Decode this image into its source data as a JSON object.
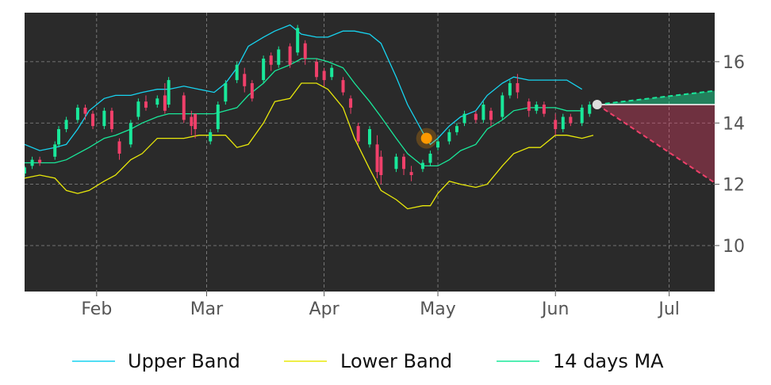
{
  "colors": {
    "background": "#ffffff",
    "plot_background": "#2a2a2a",
    "grid": "#8a8a8a",
    "upper_band": "#17d4f0",
    "lower_band": "#e8e80a",
    "ma": "#19e89a",
    "candle_up": "#19e89a",
    "candle_down": "#f0406a",
    "marker": "#ff9900",
    "projection_up": "#19e89a",
    "projection_down": "#f0406a",
    "projection_start": "#dddddd"
  },
  "chart_data": {
    "type": "line",
    "title": "",
    "xlabel": "",
    "ylabel": "",
    "x_range": [
      "2020-01-13",
      "2020-07-13"
    ],
    "ylim": [
      8.5,
      17.6
    ],
    "y_ticks": [
      10,
      12,
      14,
      16
    ],
    "y_tick_labels": [
      "10",
      "12",
      "14",
      "16"
    ],
    "x_ticks": [
      "2020-02-01",
      "2020-03-01",
      "2020-04-01",
      "2020-05-01",
      "2020-06-01",
      "2020-07-01"
    ],
    "x_tick_labels": [
      "Feb",
      "Mar",
      "Apr",
      "May",
      "Jun",
      "Jul"
    ],
    "grid": true,
    "legend_position": "bottom",
    "series": [
      {
        "name": "Upper Band",
        "key": "upper",
        "points": [
          [
            "2020-01-13",
            13.3
          ],
          [
            "2020-01-17",
            13.1
          ],
          [
            "2020-01-21",
            13.2
          ],
          [
            "2020-01-24",
            13.3
          ],
          [
            "2020-01-27",
            13.8
          ],
          [
            "2020-01-30",
            14.4
          ],
          [
            "2020-02-03",
            14.8
          ],
          [
            "2020-02-06",
            14.9
          ],
          [
            "2020-02-10",
            14.9
          ],
          [
            "2020-02-13",
            15.0
          ],
          [
            "2020-02-17",
            15.1
          ],
          [
            "2020-02-20",
            15.1
          ],
          [
            "2020-02-24",
            15.2
          ],
          [
            "2020-02-28",
            15.1
          ],
          [
            "2020-03-03",
            15.0
          ],
          [
            "2020-03-06",
            15.3
          ],
          [
            "2020-03-09",
            15.8
          ],
          [
            "2020-03-12",
            16.5
          ],
          [
            "2020-03-16",
            16.8
          ],
          [
            "2020-03-19",
            17.0
          ],
          [
            "2020-03-23",
            17.2
          ],
          [
            "2020-03-26",
            16.9
          ],
          [
            "2020-03-30",
            16.8
          ],
          [
            "2020-04-02",
            16.8
          ],
          [
            "2020-04-06",
            17.0
          ],
          [
            "2020-04-09",
            17.0
          ],
          [
            "2020-04-13",
            16.9
          ],
          [
            "2020-04-16",
            16.6
          ],
          [
            "2020-04-20",
            15.5
          ],
          [
            "2020-04-23",
            14.6
          ],
          [
            "2020-04-27",
            13.7
          ],
          [
            "2020-04-29",
            13.3
          ],
          [
            "2020-05-01",
            13.5
          ],
          [
            "2020-05-04",
            13.9
          ],
          [
            "2020-05-07",
            14.2
          ],
          [
            "2020-05-11",
            14.4
          ],
          [
            "2020-05-14",
            14.9
          ],
          [
            "2020-05-18",
            15.3
          ],
          [
            "2020-05-21",
            15.5
          ],
          [
            "2020-05-25",
            15.4
          ],
          [
            "2020-05-28",
            15.4
          ],
          [
            "2020-06-01",
            15.4
          ],
          [
            "2020-06-04",
            15.4
          ],
          [
            "2020-06-08",
            15.1
          ]
        ]
      },
      {
        "name": "Lower Band",
        "key": "lower",
        "points": [
          [
            "2020-01-13",
            12.2
          ],
          [
            "2020-01-17",
            12.3
          ],
          [
            "2020-01-21",
            12.2
          ],
          [
            "2020-01-24",
            11.8
          ],
          [
            "2020-01-27",
            11.7
          ],
          [
            "2020-01-30",
            11.8
          ],
          [
            "2020-02-03",
            12.1
          ],
          [
            "2020-02-06",
            12.3
          ],
          [
            "2020-02-10",
            12.8
          ],
          [
            "2020-02-13",
            13.0
          ],
          [
            "2020-02-17",
            13.5
          ],
          [
            "2020-02-20",
            13.5
          ],
          [
            "2020-02-24",
            13.5
          ],
          [
            "2020-02-28",
            13.6
          ],
          [
            "2020-03-03",
            13.6
          ],
          [
            "2020-03-06",
            13.6
          ],
          [
            "2020-03-09",
            13.2
          ],
          [
            "2020-03-12",
            13.3
          ],
          [
            "2020-03-16",
            14.0
          ],
          [
            "2020-03-19",
            14.7
          ],
          [
            "2020-03-23",
            14.8
          ],
          [
            "2020-03-26",
            15.3
          ],
          [
            "2020-03-30",
            15.3
          ],
          [
            "2020-04-02",
            15.1
          ],
          [
            "2020-04-06",
            14.5
          ],
          [
            "2020-04-09",
            13.5
          ],
          [
            "2020-04-13",
            12.5
          ],
          [
            "2020-04-16",
            11.8
          ],
          [
            "2020-04-20",
            11.5
          ],
          [
            "2020-04-23",
            11.2
          ],
          [
            "2020-04-27",
            11.3
          ],
          [
            "2020-04-29",
            11.3
          ],
          [
            "2020-05-01",
            11.7
          ],
          [
            "2020-05-04",
            12.1
          ],
          [
            "2020-05-07",
            12.0
          ],
          [
            "2020-05-11",
            11.9
          ],
          [
            "2020-05-14",
            12.0
          ],
          [
            "2020-05-18",
            12.6
          ],
          [
            "2020-05-21",
            13.0
          ],
          [
            "2020-05-25",
            13.2
          ],
          [
            "2020-05-28",
            13.2
          ],
          [
            "2020-06-01",
            13.6
          ],
          [
            "2020-06-04",
            13.6
          ],
          [
            "2020-06-08",
            13.5
          ],
          [
            "2020-06-11",
            13.6
          ]
        ]
      },
      {
        "name": "14 days MA",
        "key": "ma",
        "points": [
          [
            "2020-01-13",
            12.7
          ],
          [
            "2020-01-17",
            12.7
          ],
          [
            "2020-01-21",
            12.7
          ],
          [
            "2020-01-24",
            12.8
          ],
          [
            "2020-01-27",
            13.0
          ],
          [
            "2020-01-30",
            13.2
          ],
          [
            "2020-02-03",
            13.5
          ],
          [
            "2020-02-06",
            13.6
          ],
          [
            "2020-02-10",
            13.8
          ],
          [
            "2020-02-13",
            14.0
          ],
          [
            "2020-02-17",
            14.2
          ],
          [
            "2020-02-20",
            14.3
          ],
          [
            "2020-02-24",
            14.3
          ],
          [
            "2020-02-28",
            14.3
          ],
          [
            "2020-03-03",
            14.3
          ],
          [
            "2020-03-06",
            14.4
          ],
          [
            "2020-03-09",
            14.5
          ],
          [
            "2020-03-12",
            14.9
          ],
          [
            "2020-03-16",
            15.3
          ],
          [
            "2020-03-19",
            15.7
          ],
          [
            "2020-03-23",
            15.9
          ],
          [
            "2020-03-26",
            16.1
          ],
          [
            "2020-03-30",
            16.1
          ],
          [
            "2020-04-02",
            16.0
          ],
          [
            "2020-04-06",
            15.8
          ],
          [
            "2020-04-09",
            15.3
          ],
          [
            "2020-04-13",
            14.7
          ],
          [
            "2020-04-16",
            14.2
          ],
          [
            "2020-04-20",
            13.5
          ],
          [
            "2020-04-23",
            13.0
          ],
          [
            "2020-04-27",
            12.6
          ],
          [
            "2020-04-29",
            12.6
          ],
          [
            "2020-05-01",
            12.6
          ],
          [
            "2020-05-04",
            12.8
          ],
          [
            "2020-05-07",
            13.1
          ],
          [
            "2020-05-11",
            13.3
          ],
          [
            "2020-05-14",
            13.8
          ],
          [
            "2020-05-18",
            14.1
          ],
          [
            "2020-05-21",
            14.4
          ],
          [
            "2020-05-25",
            14.5
          ],
          [
            "2020-05-28",
            14.5
          ],
          [
            "2020-06-01",
            14.5
          ],
          [
            "2020-06-04",
            14.4
          ],
          [
            "2020-06-08",
            14.4
          ]
        ]
      }
    ],
    "candles": [
      [
        "2020-01-13",
        12.35,
        12.55,
        12.25,
        12.6
      ],
      [
        "2020-01-15",
        12.6,
        12.8,
        12.5,
        12.9
      ],
      [
        "2020-01-17",
        12.8,
        12.7,
        12.6,
        12.9
      ],
      [
        "2020-01-21",
        12.9,
        13.3,
        12.8,
        13.4
      ],
      [
        "2020-01-22",
        13.3,
        13.8,
        13.2,
        13.9
      ],
      [
        "2020-01-24",
        13.8,
        14.1,
        13.7,
        14.2
      ],
      [
        "2020-01-27",
        14.1,
        14.5,
        14.0,
        14.6
      ],
      [
        "2020-01-29",
        14.5,
        14.3,
        14.1,
        14.6
      ],
      [
        "2020-01-31",
        14.3,
        13.9,
        13.8,
        14.4
      ],
      [
        "2020-02-03",
        13.9,
        14.4,
        13.8,
        14.5
      ],
      [
        "2020-02-05",
        14.4,
        13.8,
        13.7,
        14.5
      ],
      [
        "2020-02-07",
        13.4,
        13.0,
        12.8,
        13.5
      ],
      [
        "2020-02-10",
        13.3,
        14.0,
        13.2,
        14.1
      ],
      [
        "2020-02-12",
        14.2,
        14.7,
        14.1,
        14.8
      ],
      [
        "2020-02-14",
        14.7,
        14.5,
        14.4,
        14.9
      ],
      [
        "2020-02-17",
        14.6,
        14.8,
        14.5,
        14.9
      ],
      [
        "2020-02-19",
        14.9,
        14.4,
        14.3,
        15.3
      ],
      [
        "2020-02-20",
        14.6,
        15.4,
        14.5,
        15.5
      ],
      [
        "2020-02-24",
        14.9,
        14.1,
        14.0,
        15.0
      ],
      [
        "2020-02-26",
        14.2,
        13.9,
        13.6,
        14.4
      ],
      [
        "2020-02-27",
        14.3,
        13.8,
        13.5,
        14.3
      ],
      [
        "2020-03-02",
        13.4,
        13.7,
        13.3,
        13.8
      ],
      [
        "2020-03-04",
        13.8,
        14.6,
        13.7,
        14.7
      ],
      [
        "2020-03-06",
        14.7,
        15.3,
        14.6,
        15.4
      ],
      [
        "2020-03-09",
        15.4,
        15.9,
        15.3,
        16.0
      ],
      [
        "2020-03-11",
        15.6,
        15.2,
        15.0,
        15.8
      ],
      [
        "2020-03-13",
        15.3,
        14.8,
        14.7,
        15.4
      ],
      [
        "2020-03-16",
        15.4,
        16.1,
        15.3,
        16.2
      ],
      [
        "2020-03-18",
        16.2,
        15.9,
        15.7,
        16.3
      ],
      [
        "2020-03-20",
        15.9,
        16.4,
        15.8,
        16.5
      ],
      [
        "2020-03-23",
        16.5,
        15.9,
        15.8,
        16.6
      ],
      [
        "2020-03-25",
        16.3,
        17.1,
        16.2,
        17.2
      ],
      [
        "2020-03-27",
        16.6,
        16.1,
        15.9,
        16.7
      ],
      [
        "2020-03-30",
        16.0,
        15.5,
        15.4,
        16.1
      ],
      [
        "2020-04-01",
        15.7,
        15.4,
        15.2,
        15.8
      ],
      [
        "2020-04-03",
        15.5,
        15.8,
        15.4,
        15.9
      ],
      [
        "2020-04-06",
        15.4,
        15.0,
        14.9,
        15.5
      ],
      [
        "2020-04-08",
        14.8,
        14.5,
        14.3,
        14.9
      ],
      [
        "2020-04-10",
        13.9,
        13.4,
        13.3,
        14.0
      ],
      [
        "2020-04-13",
        13.3,
        13.8,
        13.2,
        13.9
      ],
      [
        "2020-04-15",
        13.3,
        12.4,
        12.2,
        13.6
      ],
      [
        "2020-04-16",
        12.9,
        12.3,
        12.0,
        13.1
      ],
      [
        "2020-04-20",
        12.5,
        12.9,
        12.4,
        13.0
      ],
      [
        "2020-04-22",
        12.9,
        12.5,
        12.3,
        13.0
      ],
      [
        "2020-04-24",
        12.4,
        12.3,
        12.1,
        12.6
      ],
      [
        "2020-04-27",
        12.5,
        12.7,
        12.4,
        12.8
      ],
      [
        "2020-04-29",
        12.7,
        13.0,
        12.6,
        13.1
      ],
      [
        "2020-05-01",
        13.2,
        13.4,
        13.1,
        13.5
      ],
      [
        "2020-05-04",
        13.4,
        13.7,
        13.3,
        13.8
      ],
      [
        "2020-05-06",
        13.7,
        13.9,
        13.6,
        14.0
      ],
      [
        "2020-05-08",
        14.0,
        14.3,
        13.9,
        14.4
      ],
      [
        "2020-05-11",
        14.3,
        14.1,
        14.0,
        14.4
      ],
      [
        "2020-05-13",
        14.1,
        14.6,
        14.0,
        14.7
      ],
      [
        "2020-05-15",
        14.4,
        14.1,
        13.9,
        14.5
      ],
      [
        "2020-05-18",
        14.2,
        14.9,
        14.1,
        15.0
      ],
      [
        "2020-05-20",
        14.9,
        15.3,
        14.8,
        15.4
      ],
      [
        "2020-05-22",
        15.3,
        15.0,
        14.8,
        15.6
      ],
      [
        "2020-05-25",
        14.7,
        14.4,
        14.2,
        14.8
      ],
      [
        "2020-05-27",
        14.4,
        14.6,
        14.3,
        14.7
      ],
      [
        "2020-05-29",
        14.6,
        14.3,
        14.2,
        14.7
      ],
      [
        "2020-06-01",
        14.1,
        13.8,
        13.6,
        14.3
      ],
      [
        "2020-06-03",
        13.8,
        14.2,
        13.7,
        14.3
      ],
      [
        "2020-06-05",
        14.2,
        14.0,
        13.9,
        14.3
      ],
      [
        "2020-06-08",
        14.0,
        14.5,
        13.9,
        14.6
      ],
      [
        "2020-06-10",
        14.3,
        14.6,
        14.2,
        14.7
      ]
    ],
    "marker": {
      "x": "2020-04-28",
      "y": 13.5
    },
    "projection": {
      "start": {
        "x": "2020-06-12",
        "y": 14.6
      },
      "upper_end": {
        "x": "2020-07-13",
        "y": 15.05
      },
      "lower_end": {
        "x": "2020-07-13",
        "y": 12.05
      }
    }
  },
  "legend": {
    "items": [
      {
        "label": "Upper Band",
        "color": "#17d4f0"
      },
      {
        "label": "Lower Band",
        "color": "#e8e80a"
      },
      {
        "label": "14 days MA",
        "color": "#19e89a"
      }
    ]
  }
}
